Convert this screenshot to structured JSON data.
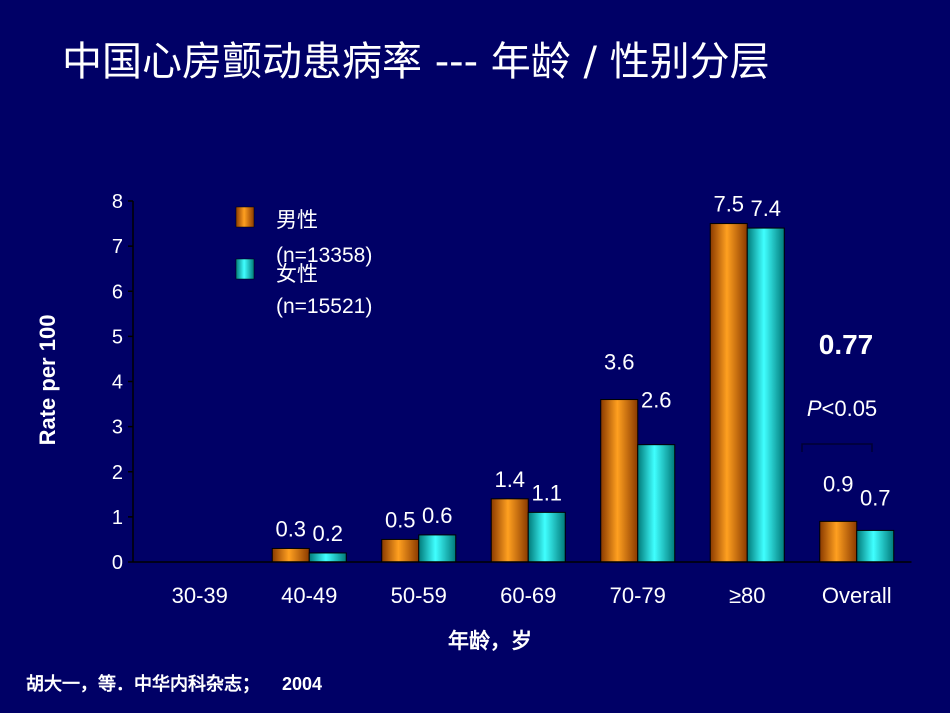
{
  "slide": {
    "title": "中国心房颤动患病率  --- 年龄 / 性别分层",
    "source": "胡大一，等．中华内科杂志；",
    "source_year": "2004"
  },
  "chart_data": {
    "type": "bar",
    "xlabel": "年龄，岁",
    "ylabel": "Rate per 100",
    "ylim": [
      0,
      8
    ],
    "yticks": [
      0,
      1,
      2,
      3,
      4,
      5,
      6,
      7,
      8
    ],
    "categories": [
      "30-39",
      "40-49",
      "50-59",
      "60-69",
      "70-79",
      "≥80",
      "Overall"
    ],
    "series": [
      {
        "name": "男性",
        "n_label": "(n=13358)",
        "color": "#e07800",
        "values": [
          0,
          0.3,
          0.5,
          1.4,
          3.6,
          7.5,
          0.9
        ],
        "data_labels": [
          "",
          "0.3",
          "0.5",
          "1.4",
          "3.6",
          "7.5",
          "0.9"
        ]
      },
      {
        "name": "女性",
        "n_label": "(n=15521)",
        "color": "#00d6d6",
        "values": [
          0,
          0.2,
          0.6,
          1.1,
          2.6,
          7.4,
          0.7
        ],
        "data_labels": [
          "",
          "0.2",
          "0.6",
          "1.1",
          "2.6",
          "7.4",
          "0.7"
        ]
      }
    ],
    "legend_position": "top-left",
    "annotations": {
      "ratio": "0.77",
      "p_letter": "P",
      "p_rest": "<0.05"
    }
  }
}
